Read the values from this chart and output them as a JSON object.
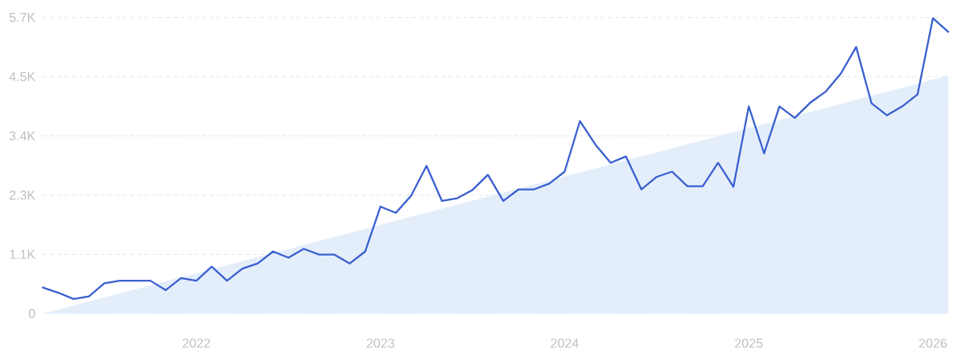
{
  "chart_data": {
    "type": "line",
    "x": [
      "2021-03",
      "2021-04",
      "2021-05",
      "2021-06",
      "2021-07",
      "2021-08",
      "2021-09",
      "2021-10",
      "2021-11",
      "2021-12",
      "2022-01",
      "2022-02",
      "2022-03",
      "2022-04",
      "2022-05",
      "2022-06",
      "2022-07",
      "2022-08",
      "2022-09",
      "2022-10",
      "2022-11",
      "2022-12",
      "2023-01",
      "2023-02",
      "2023-03",
      "2023-04",
      "2023-05",
      "2023-06",
      "2023-07",
      "2023-08",
      "2023-09",
      "2023-10",
      "2023-11",
      "2023-12",
      "2024-01",
      "2024-02",
      "2024-03",
      "2024-04",
      "2024-05",
      "2024-06",
      "2024-07",
      "2024-08",
      "2024-09",
      "2024-10",
      "2024-11",
      "2024-12",
      "2025-01",
      "2025-02",
      "2025-03",
      "2025-04",
      "2025-05",
      "2025-06",
      "2025-07",
      "2025-08",
      "2025-09",
      "2025-10",
      "2025-11",
      "2025-12",
      "2026-01",
      "2026-02"
    ],
    "series": [
      {
        "type": "area",
        "color": "#e4eefb",
        "x": [
          "2021-03",
          "2026-02"
        ],
        "values": [
          0,
          4560
        ]
      },
      {
        "type": "line",
        "color": "#3a60d0",
        "values": [
          500,
          400,
          280,
          330,
          580,
          630,
          630,
          630,
          450,
          680,
          630,
          900,
          630,
          860,
          960,
          1190,
          1070,
          1240,
          1130,
          1130,
          960,
          1190,
          2050,
          1930,
          2260,
          2830,
          2160,
          2210,
          2370,
          2660,
          2160,
          2380,
          2380,
          2490,
          2720,
          3690,
          3240,
          2890,
          3010,
          2380,
          2620,
          2720,
          2440,
          2440,
          2890,
          2430,
          3970,
          3070,
          3970,
          3750,
          4040,
          4250,
          4600,
          5110,
          4030,
          3800,
          3970,
          4200,
          5660,
          5400
        ]
      }
    ],
    "xlim": [
      "2021-03",
      "2026-02"
    ],
    "xticks": [
      "2022",
      "2023",
      "2024",
      "2025",
      "2026"
    ],
    "ylim": [
      0,
      5675
    ],
    "yticks": [
      0,
      {
        "value": 1135,
        "label": "1.1K"
      },
      {
        "value": 2270,
        "label": "2.3K"
      },
      {
        "value": 3405,
        "label": "3.4K"
      },
      {
        "value": 4540,
        "label": "4.5K"
      },
      {
        "value": 5675,
        "label": "5.7K"
      }
    ],
    "grid": "y"
  }
}
